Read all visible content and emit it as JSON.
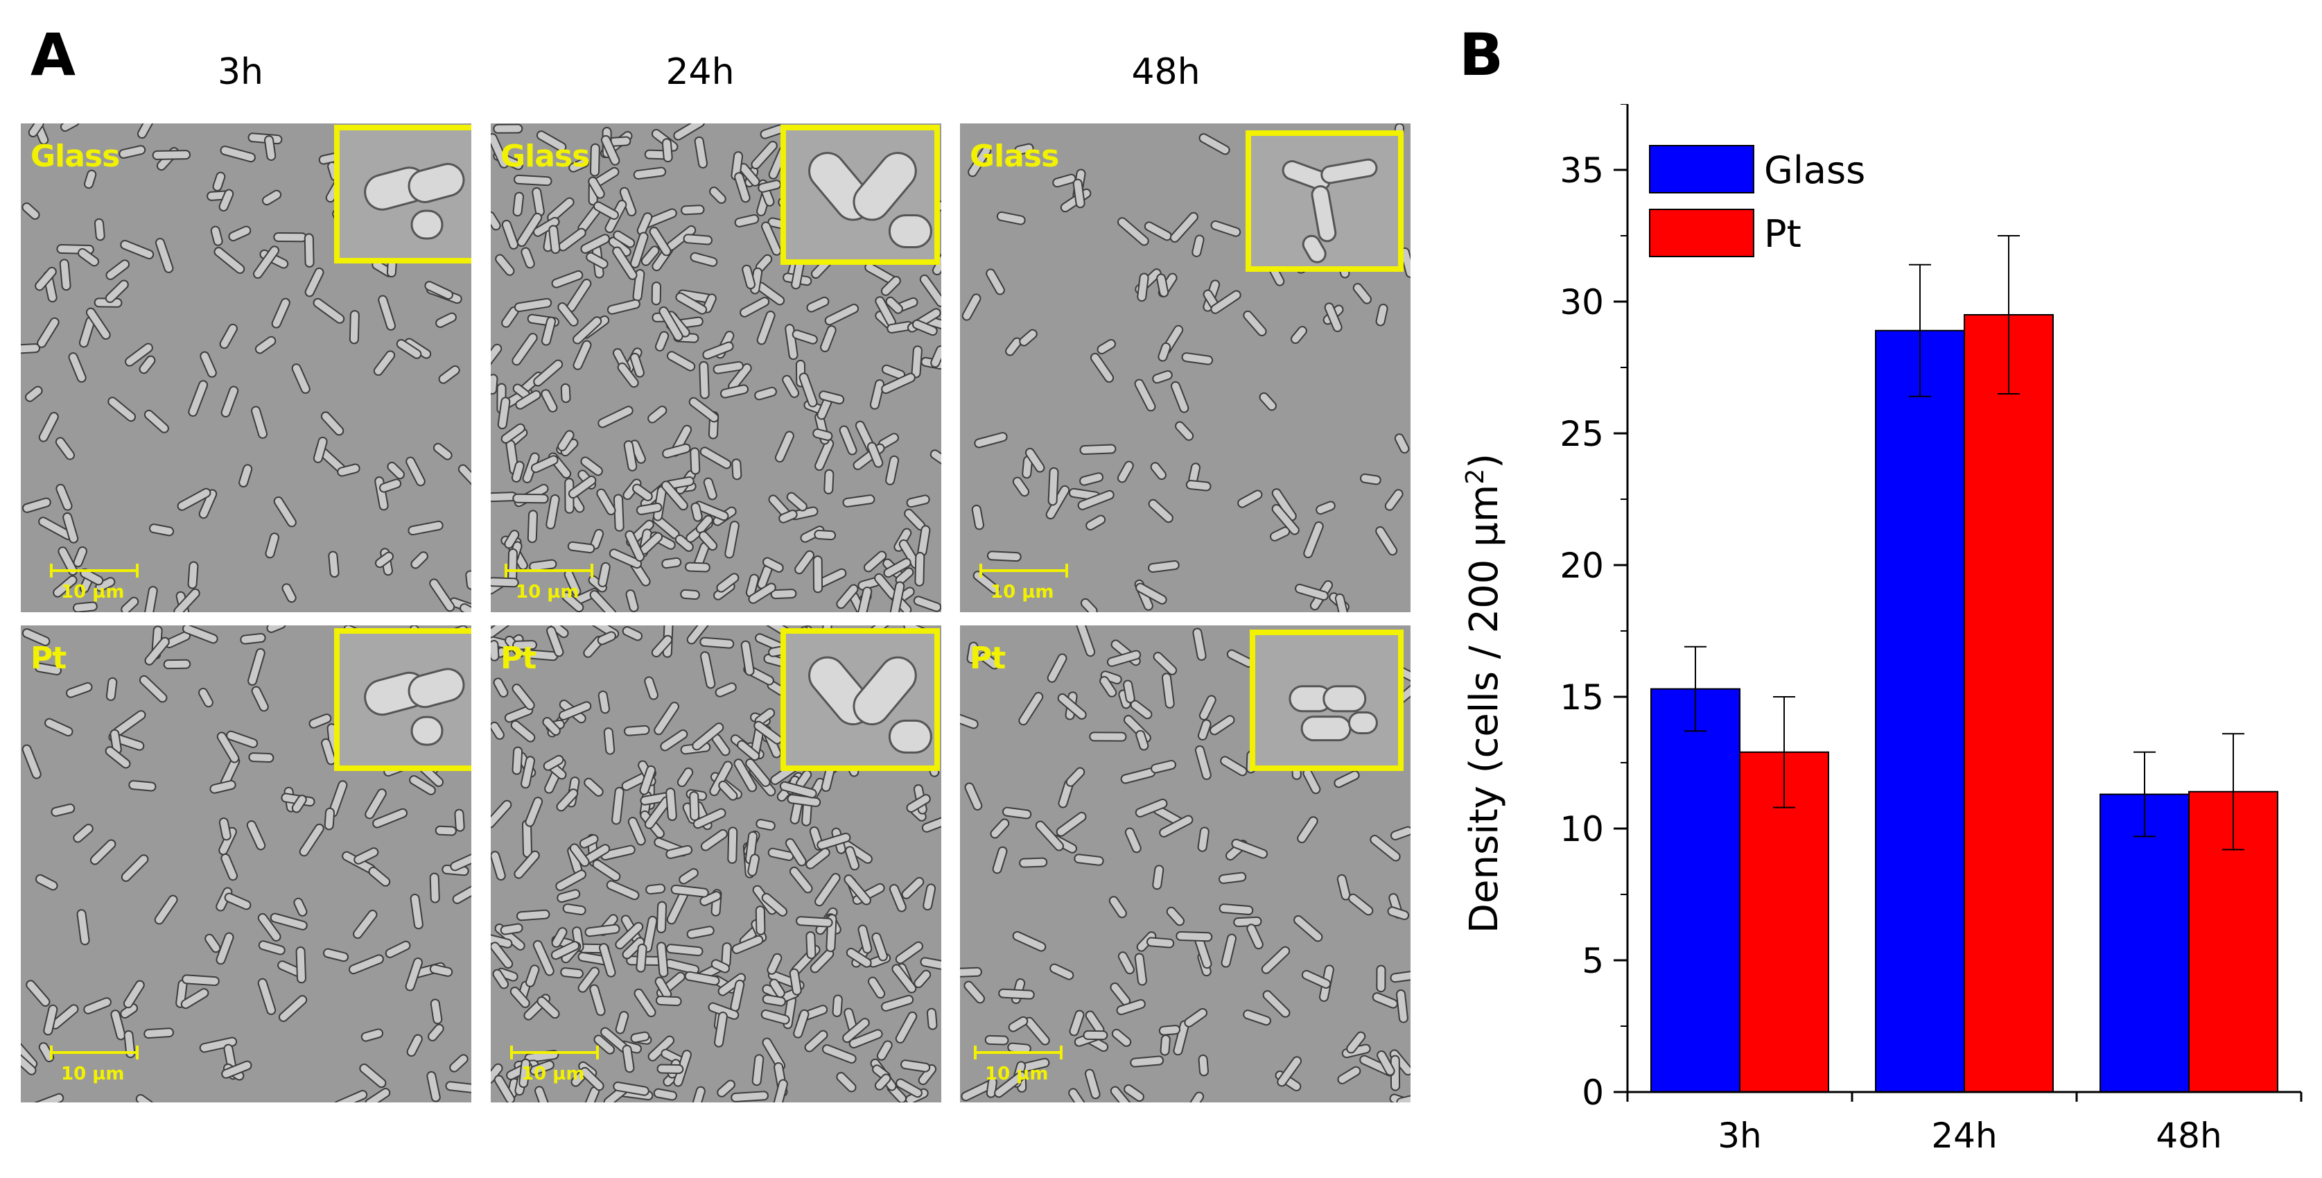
{
  "figure": {
    "panel_a_letter": "A",
    "panel_b_letter": "B",
    "columns": [
      "3h",
      "24h",
      "48h"
    ],
    "rows": [
      "Glass",
      "Pt"
    ],
    "scale_label": "10 µm",
    "highlight_color": "#f2f200"
  },
  "chart_data": {
    "type": "bar",
    "categories": [
      "3h",
      "24h",
      "48h"
    ],
    "series": [
      {
        "name": "Glass",
        "color": "#0000ff",
        "values": [
          15.3,
          28.9,
          11.3
        ],
        "errors": [
          1.6,
          2.5,
          1.6
        ]
      },
      {
        "name": "Pt",
        "color": "#ff0000",
        "values": [
          12.9,
          29.5,
          11.4
        ],
        "errors": [
          2.1,
          3.0,
          2.2
        ]
      }
    ],
    "ylabel": "Density (cells / 200 µm",
    "ylabel_sup": "2",
    "ylabel_close": ")",
    "ylim": [
      0,
      37.5
    ],
    "yticks": [
      "0",
      "5",
      "10",
      "15",
      "20",
      "25",
      "30",
      "35"
    ],
    "legend_position": "top-left"
  }
}
